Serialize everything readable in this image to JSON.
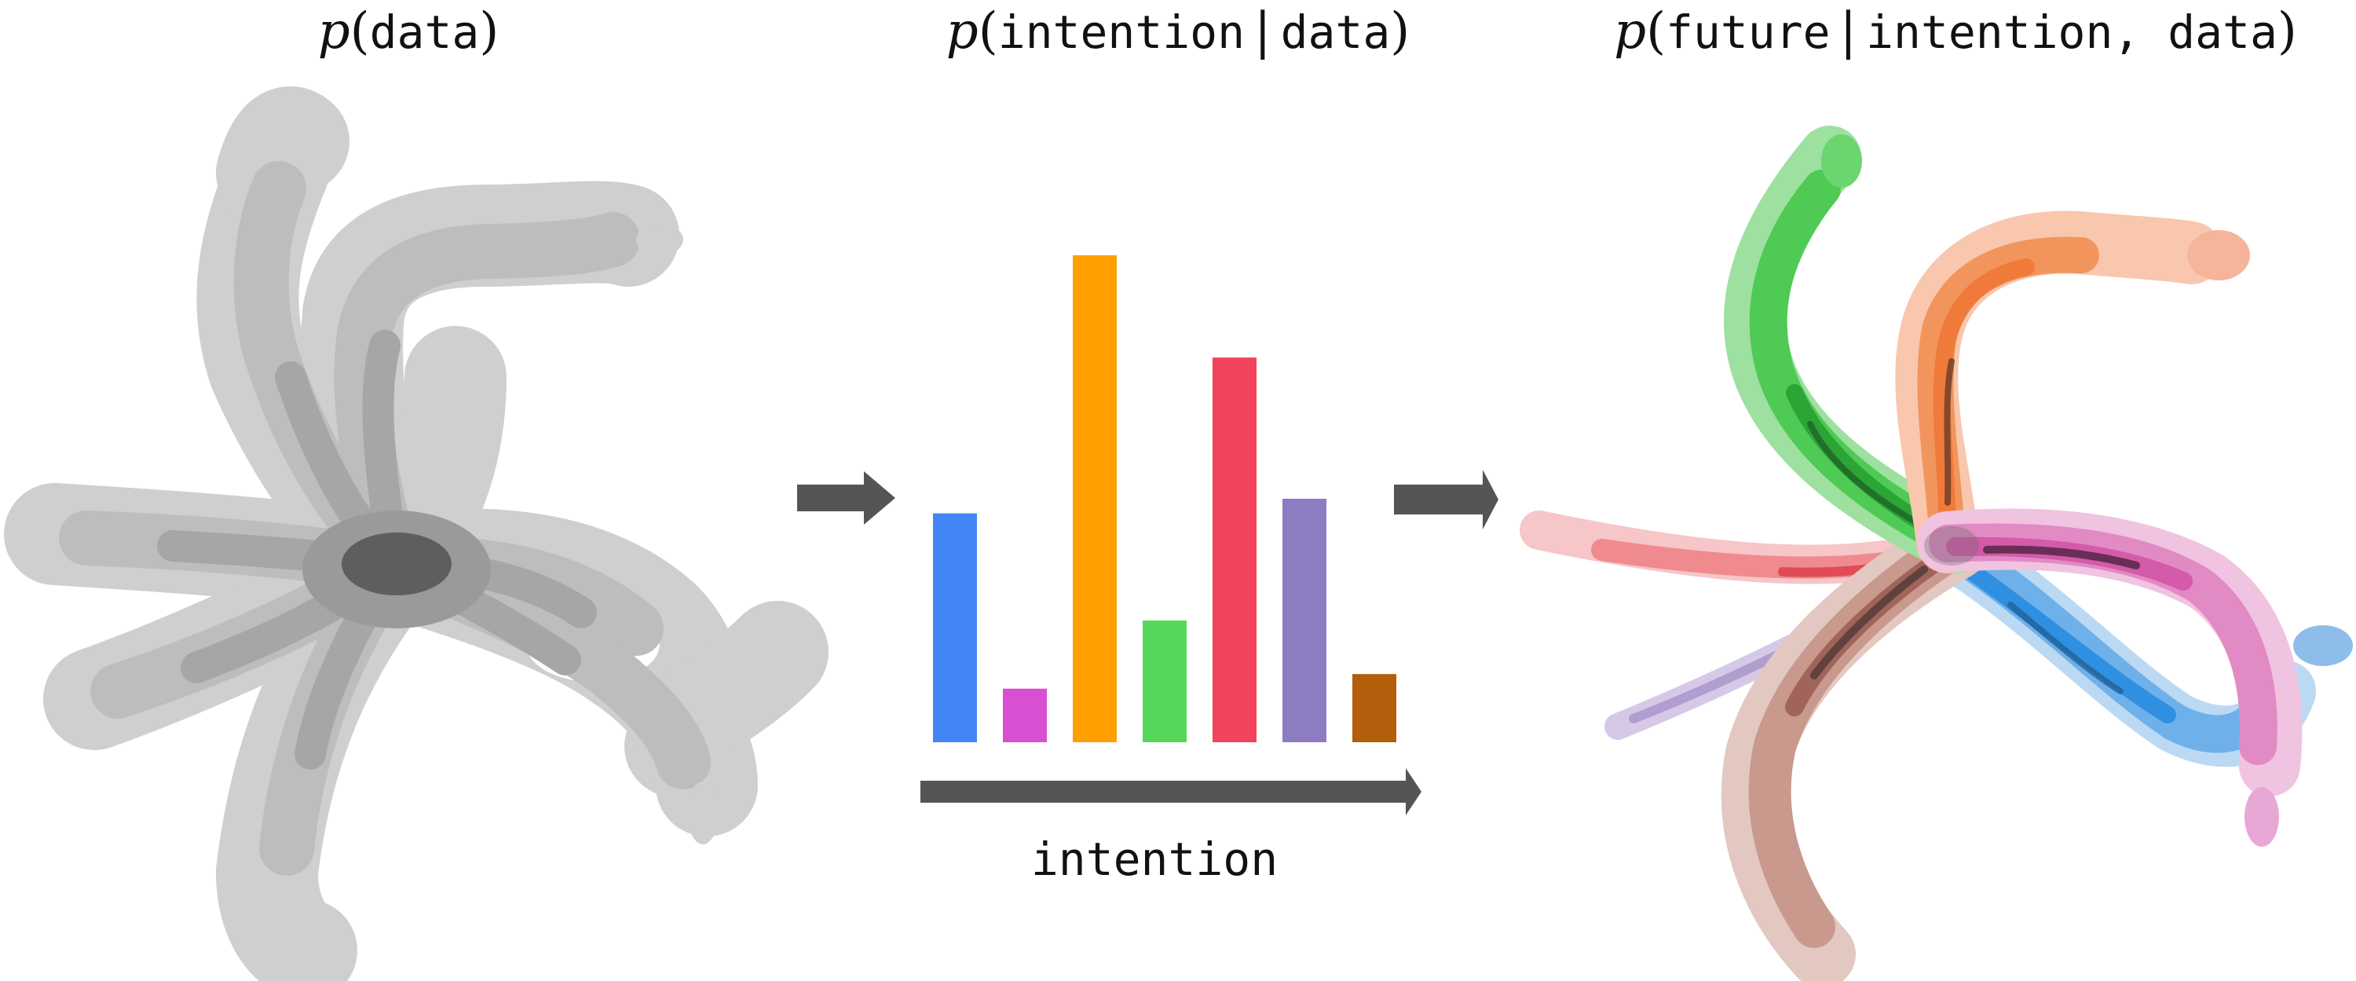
{
  "panels": {
    "data_panel": {
      "title_p": "p",
      "title_open": "(",
      "title_var": "data",
      "title_close": ")"
    },
    "intention_panel": {
      "title_p": "p",
      "title_open": "(",
      "title_var": "intention",
      "title_bar": "|",
      "title_cond": "data",
      "title_close": ")"
    },
    "future_panel": {
      "title_p": "p",
      "title_open": "(",
      "title_var": "future",
      "title_bar": "|",
      "title_cond": "intention, data",
      "title_close": ")"
    }
  },
  "chart_data": {
    "type": "bar",
    "xlabel": "intention",
    "ylabel": "",
    "title": "",
    "categories": [
      "",
      "",
      "",
      "",
      "",
      "",
      ""
    ],
    "values": [
      0.47,
      0.11,
      1.0,
      0.25,
      0.79,
      0.5,
      0.14
    ],
    "colors": [
      "#4285f4",
      "#d94fd2",
      "#ffa000",
      "#55d85a",
      "#f2435a",
      "#8e7cc3",
      "#b35e0b"
    ]
  },
  "colors": {
    "density_gray": "#b8b8b8",
    "arrow_gray": "#555555",
    "future_green": "#3fbf4a",
    "future_orange": "#ef7a3a",
    "future_pink": "#d45aaa",
    "future_blue": "#2f8fe0",
    "future_red": "#e24a55",
    "future_brown": "#b07868",
    "future_purple": "#a28ac4"
  }
}
